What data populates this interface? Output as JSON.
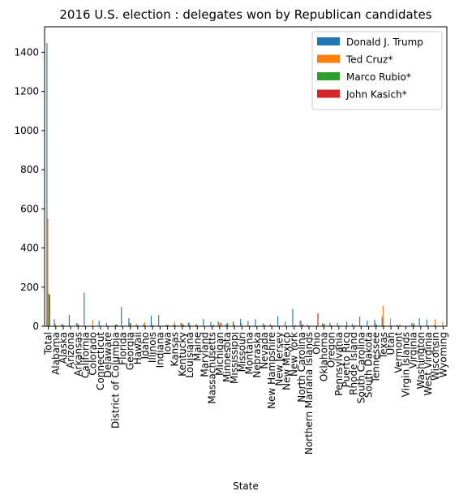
{
  "chart_data": {
    "type": "bar",
    "title": "2016 U.S. election : delegates won by Republican candidates",
    "xlabel": "State",
    "ylabel": "",
    "ylim": [
      0,
      1530
    ],
    "yticks": [
      0,
      200,
      400,
      600,
      800,
      1000,
      1200,
      1400
    ],
    "grid": false,
    "legend_position": "top-right",
    "categories": [
      "Total",
      "Alabama",
      "Alaska",
      "Arizona",
      "Arkansas",
      "California",
      "Colorado",
      "Connecticut",
      "Delaware",
      "District of Columbia",
      "Florida",
      "Georgia",
      "Hawaii",
      "Idaho",
      "Illinois",
      "Indiana",
      "Iowa",
      "Kansas",
      "Kentucky",
      "Louisiana",
      "Maine",
      "Maryland",
      "Massachusetts",
      "Michigan",
      "Minnesota",
      "Mississippi",
      "Missouri",
      "Montana",
      "Nebraska",
      "Nevada",
      "New Hampshire",
      "New Jersey",
      "New Mexico",
      "New York",
      "North Carolina",
      "Northern Mariana Islands",
      "Ohio",
      "Oklahoma",
      "Oregon",
      "Pennsylvania",
      "Puerto Rico",
      "Rhode Island",
      "South Carolina",
      "South Dakota",
      "Tennessee",
      "Texas",
      "Utah",
      "Vermont",
      "Virgin Islands",
      "Virginia",
      "Washington",
      "West Virginia",
      "Wisconsin",
      "Wyoming"
    ],
    "series": [
      {
        "name": "Donald J. Trump",
        "color": "#1f77b4",
        "values": [
          1447,
          36,
          11,
          58,
          16,
          172,
          0,
          28,
          16,
          0,
          99,
          42,
          11,
          12,
          54,
          57,
          7,
          9,
          17,
          18,
          9,
          38,
          22,
          25,
          8,
          25,
          37,
          27,
          36,
          14,
          11,
          51,
          24,
          89,
          29,
          9,
          0,
          14,
          18,
          17,
          0,
          12,
          50,
          29,
          33,
          48,
          0,
          8,
          0,
          17,
          41,
          34,
          6,
          1
        ]
      },
      {
        "name": "Ted Cruz*",
        "color": "#ff7f0e",
        "values": [
          551,
          13,
          12,
          0,
          15,
          0,
          34,
          0,
          0,
          0,
          0,
          18,
          7,
          20,
          9,
          0,
          8,
          24,
          15,
          18,
          12,
          0,
          4,
          17,
          13,
          13,
          15,
          0,
          0,
          6,
          3,
          0,
          0,
          0,
          27,
          0,
          0,
          15,
          5,
          0,
          0,
          2,
          0,
          0,
          16,
          104,
          40,
          0,
          0,
          8,
          0,
          0,
          36,
          23
        ]
      },
      {
        "name": "Marco Rubio*",
        "color": "#2ca02c",
        "values": [
          166,
          1,
          5,
          0,
          9,
          0,
          0,
          0,
          0,
          10,
          0,
          16,
          1,
          0,
          0,
          0,
          7,
          6,
          7,
          5,
          0,
          0,
          0,
          0,
          17,
          0,
          0,
          0,
          0,
          7,
          2,
          0,
          0,
          0,
          6,
          0,
          0,
          12,
          0,
          0,
          23,
          0,
          0,
          0,
          9,
          3,
          0,
          0,
          0,
          16,
          0,
          0,
          0,
          1
        ]
      },
      {
        "name": "John Kasich*",
        "color": "#d62728",
        "values": [
          161,
          0,
          0,
          0,
          0,
          0,
          0,
          0,
          0,
          9,
          0,
          0,
          0,
          0,
          5,
          0,
          1,
          1,
          7,
          0,
          2,
          0,
          8,
          17,
          0,
          0,
          0,
          0,
          0,
          1,
          4,
          0,
          0,
          6,
          9,
          0,
          66,
          0,
          5,
          0,
          0,
          6,
          0,
          0,
          0,
          0,
          0,
          8,
          0,
          5,
          0,
          0,
          0,
          0
        ]
      }
    ]
  }
}
